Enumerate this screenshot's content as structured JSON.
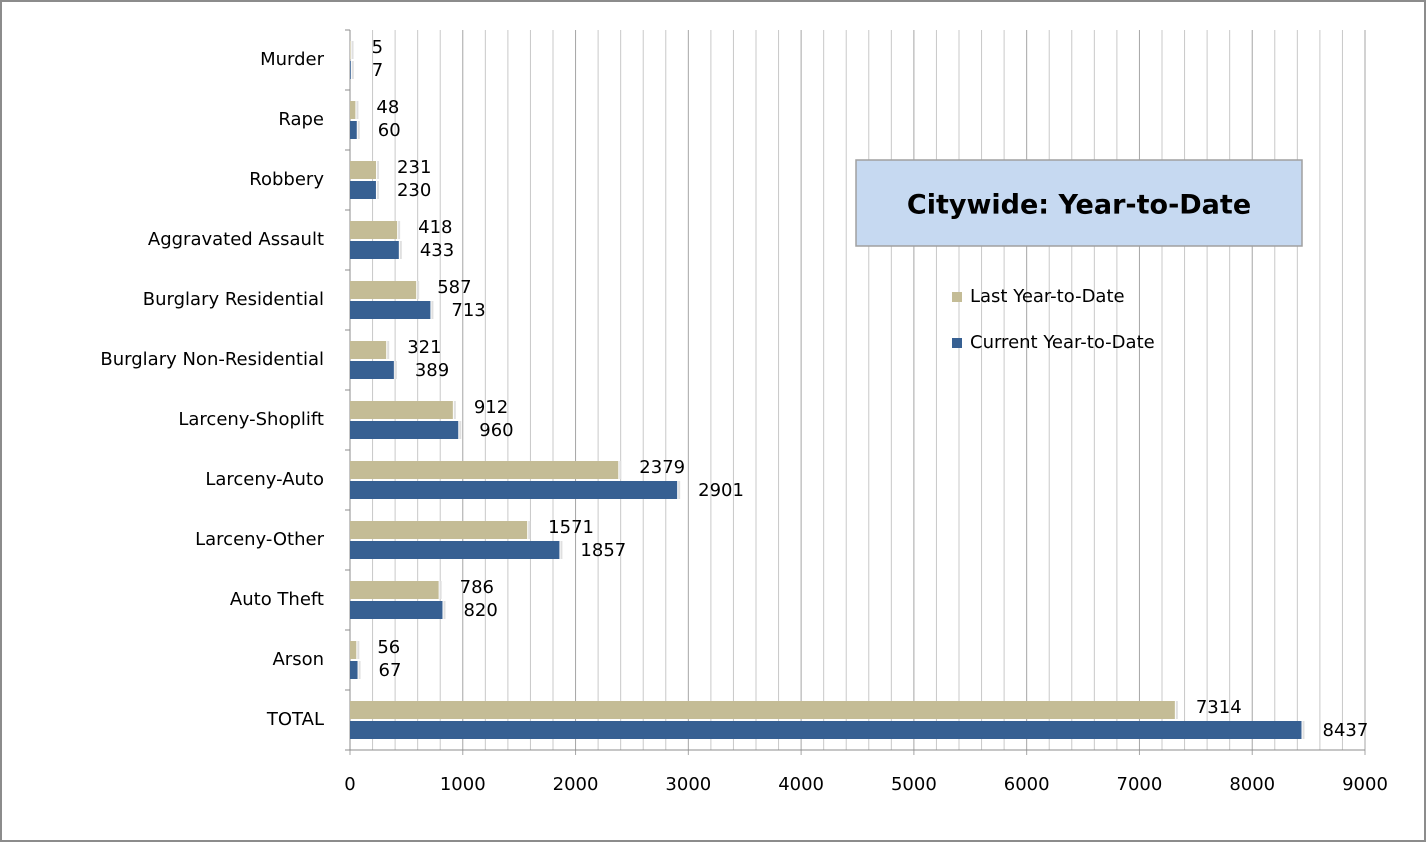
{
  "chart_data": {
    "type": "bar",
    "orientation": "horizontal",
    "title": "Citywide: Year-to-Date",
    "categories": [
      "Murder",
      "Rape",
      "Robbery",
      "Aggravated Assault",
      "Burglary Residential",
      "Burglary Non-Residential",
      "Larceny-Shoplift",
      "Larceny-Auto",
      "Larceny-Other",
      "Auto Theft",
      "Arson",
      "TOTAL"
    ],
    "series": [
      {
        "name": "Last Year-to-Date",
        "color": "#c4bc96",
        "values": [
          5,
          48,
          231,
          418,
          587,
          321,
          912,
          2379,
          1571,
          786,
          56,
          7314
        ]
      },
      {
        "name": "Current Year-to-Date",
        "color": "#376092",
        "values": [
          7,
          60,
          230,
          433,
          713,
          389,
          960,
          2901,
          1857,
          820,
          67,
          8437
        ]
      }
    ],
    "xlim": [
      0,
      9000
    ],
    "xticks": [
      0,
      1000,
      2000,
      3000,
      4000,
      5000,
      6000,
      7000,
      8000,
      9000
    ],
    "grid": true
  }
}
